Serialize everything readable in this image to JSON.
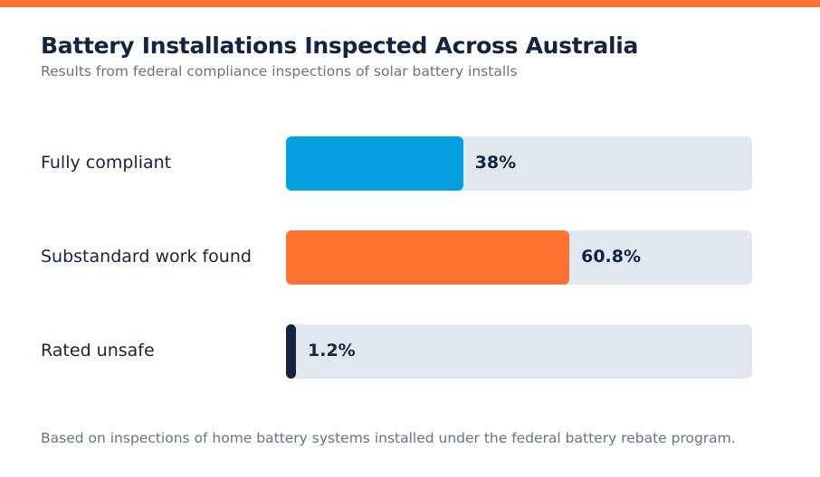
{
  "colors": {
    "accent": "#ff7330",
    "track": "#e2e8f0",
    "text_dark": "#14233f",
    "text_muted": "#6b7280"
  },
  "chart_data": {
    "type": "bar",
    "orientation": "horizontal",
    "title": "Battery Installations Inspected Across Australia",
    "subtitle": "Results from federal compliance inspections of solar battery installs",
    "categories": [
      "Fully compliant",
      "Substandard work found",
      "Rated unsafe"
    ],
    "values": [
      38,
      60.8,
      1.2
    ],
    "value_labels": [
      "38%",
      "60.8%",
      "1.2%"
    ],
    "colors": [
      "#069fdf",
      "#ff7330",
      "#14233f"
    ],
    "xlim": [
      0,
      100
    ],
    "unit": "%",
    "grid": false,
    "legend": "none",
    "footnote": "Based on inspections of home battery systems installed under the federal battery rebate program."
  }
}
